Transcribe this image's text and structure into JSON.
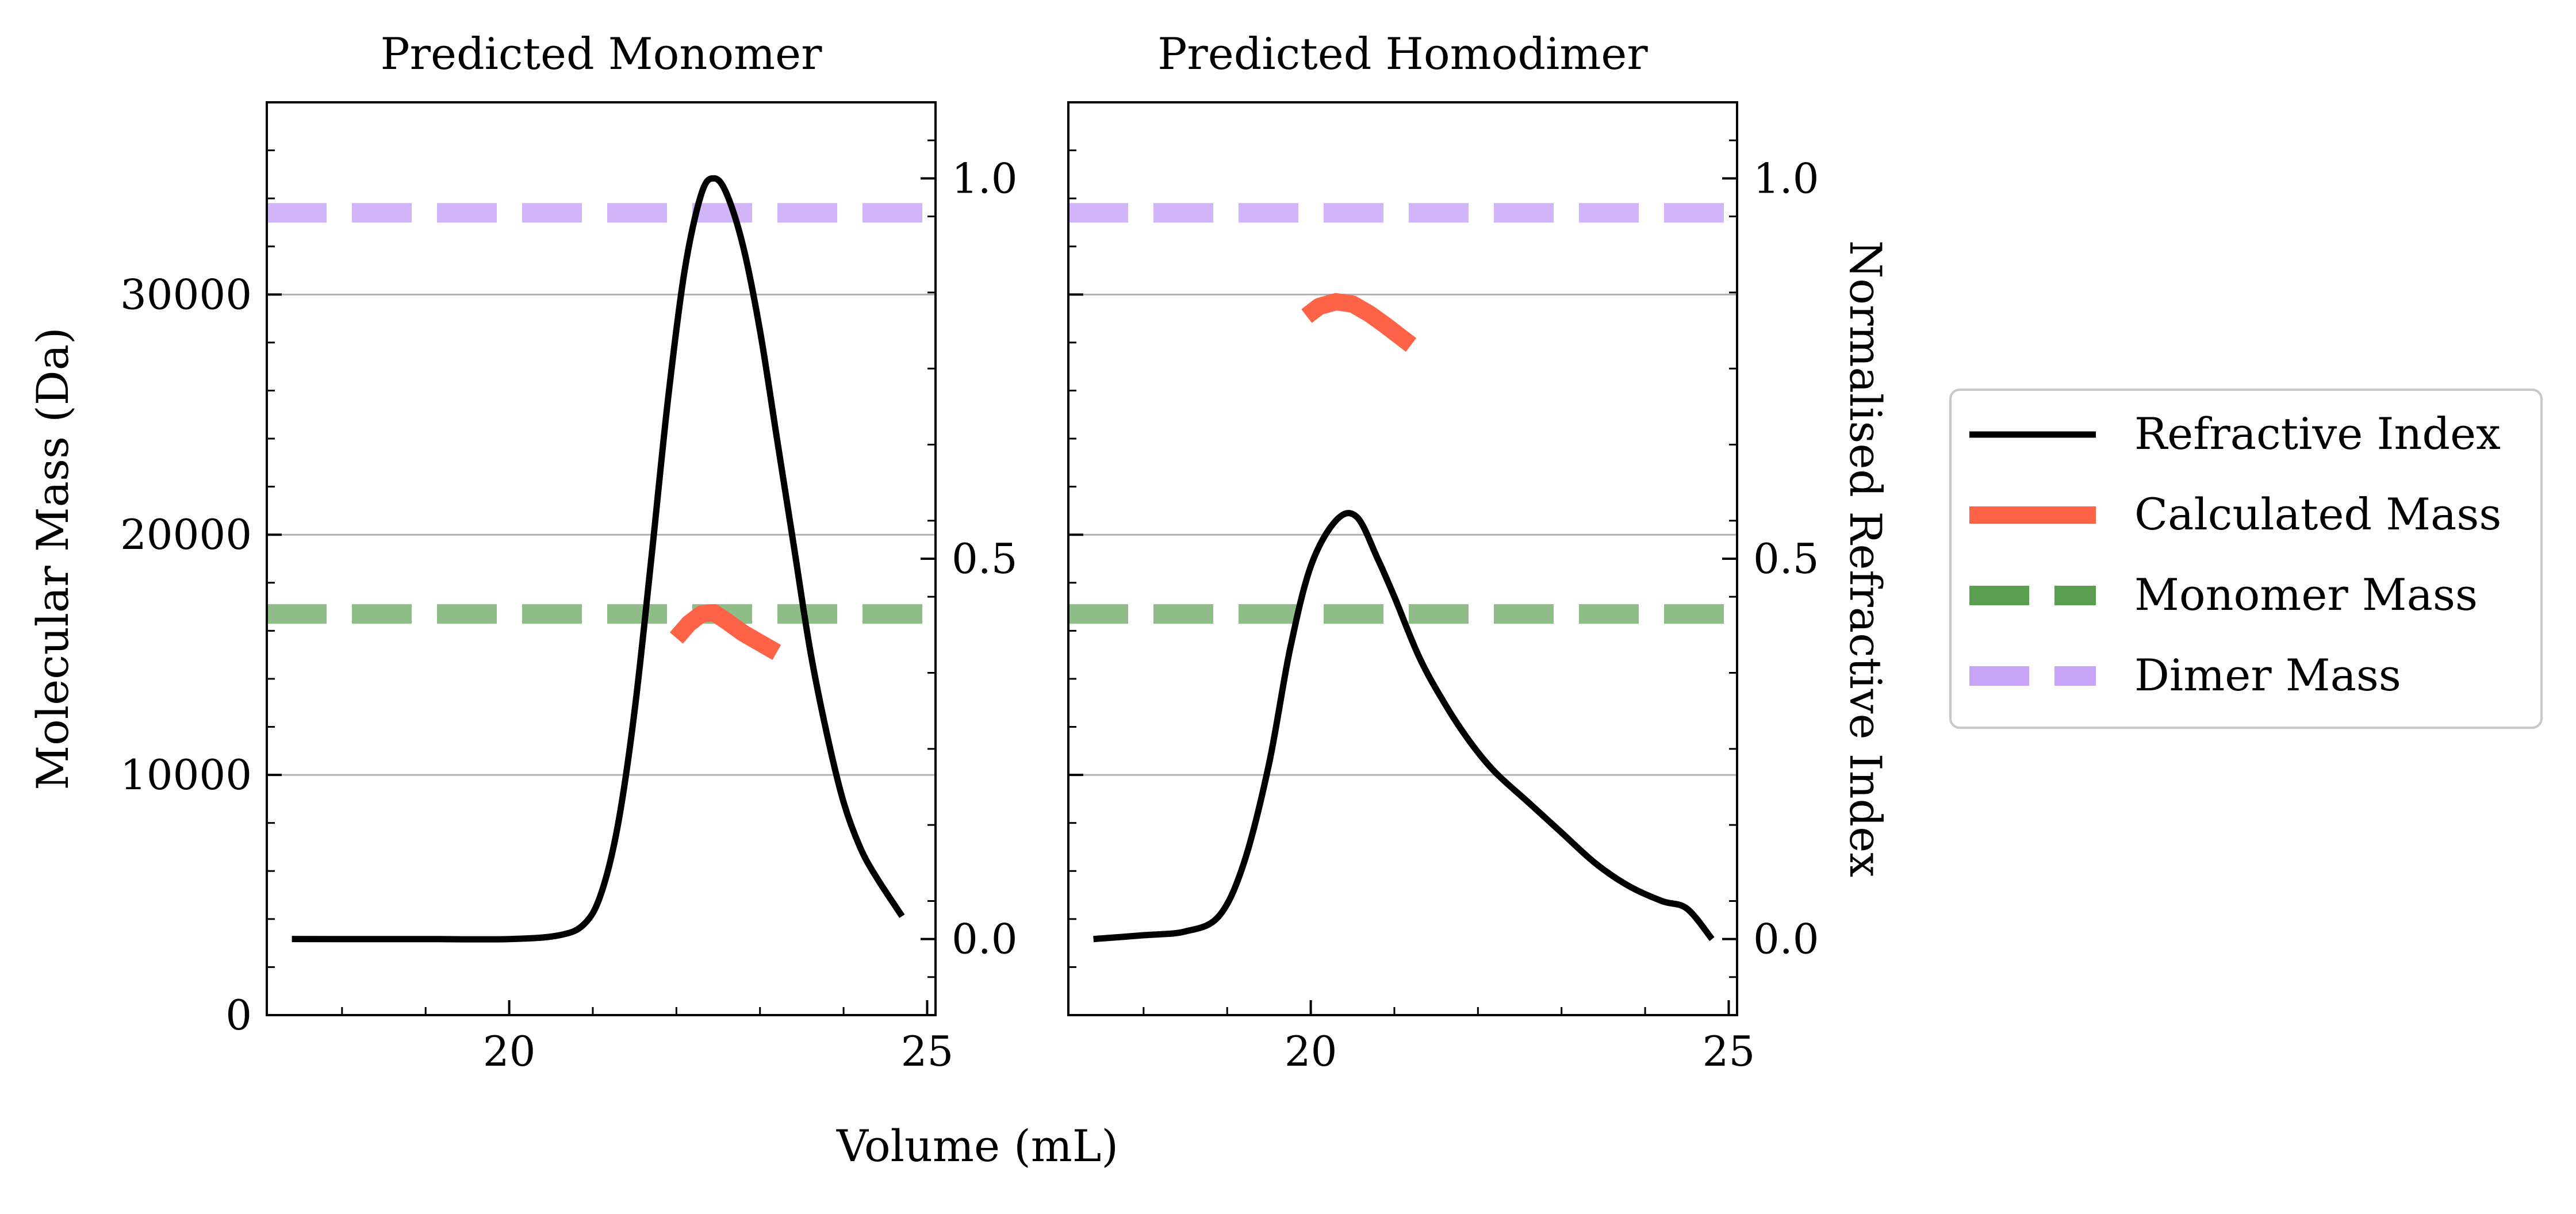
{
  "chart_data": {
    "type": "line",
    "shared": {
      "xlabel": "Volume (mL)",
      "ylabel_left": "Molecular Mass (Da)",
      "ylabel_right": "Normalised Refractive Index",
      "xlim": [
        17.1,
        25.1
      ],
      "ylim_left": [
        0,
        38000
      ],
      "ylim_right": [
        -0.1,
        1.1
      ],
      "xticks": [
        20,
        25
      ],
      "xtick_labels": [
        "20",
        "25"
      ],
      "yticks_left": [
        0,
        10000,
        20000,
        30000
      ],
      "ytick_labels_left": [
        "0",
        "10000",
        "20000",
        "30000"
      ],
      "yticks_right": [
        0.0,
        0.5,
        1.0
      ],
      "ytick_labels_right": [
        "0.0",
        "0.5",
        "1.0"
      ],
      "grid": "horizontal",
      "legend_placement": "outside-right"
    },
    "legend": [
      {
        "label": "Refractive Index",
        "color": "#000000",
        "style": "solid"
      },
      {
        "label": "Calculated Mass",
        "color": "#ff6347",
        "style": "solid-thick"
      },
      {
        "label": "Monomer Mass",
        "color": "#5a9e4f",
        "style": "dashed"
      },
      {
        "label": "Dimer Mass",
        "color": "#c6a3f7",
        "style": "dashed"
      }
    ],
    "subplots": [
      {
        "title": "Predicted Monomer",
        "monomer_mass": 16700,
        "dimer_mass": 33400,
        "refractive_index": {
          "x": [
            17.4,
            18.0,
            19.0,
            20.0,
            20.6,
            20.9,
            21.1,
            21.3,
            21.5,
            21.7,
            21.9,
            22.1,
            22.3,
            22.45,
            22.6,
            22.8,
            23.0,
            23.2,
            23.4,
            23.6,
            23.8,
            24.0,
            24.2,
            24.4,
            24.7
          ],
          "y": [
            0.0,
            0.0,
            0.0,
            0.0,
            0.005,
            0.02,
            0.06,
            0.15,
            0.3,
            0.5,
            0.71,
            0.88,
            0.98,
            1.0,
            0.98,
            0.91,
            0.8,
            0.66,
            0.52,
            0.38,
            0.27,
            0.18,
            0.12,
            0.08,
            0.03
          ]
        },
        "calculated_mass": {
          "x": [
            22.0,
            22.15,
            22.3,
            22.45,
            22.6,
            22.8,
            23.0,
            23.2
          ],
          "y": [
            15700,
            16300,
            16700,
            16750,
            16400,
            15900,
            15500,
            15100
          ]
        }
      },
      {
        "title": "Predicted Homodimer",
        "monomer_mass": 16700,
        "dimer_mass": 33400,
        "refractive_index": {
          "x": [
            17.4,
            18.0,
            18.5,
            18.9,
            19.2,
            19.5,
            19.75,
            20.0,
            20.3,
            20.55,
            20.8,
            21.0,
            21.3,
            21.6,
            21.9,
            22.2,
            22.6,
            23.0,
            23.4,
            23.8,
            24.2,
            24.5,
            24.8
          ],
          "y": [
            0.0,
            0.005,
            0.01,
            0.03,
            0.1,
            0.23,
            0.38,
            0.49,
            0.55,
            0.555,
            0.5,
            0.45,
            0.37,
            0.31,
            0.26,
            0.22,
            0.18,
            0.14,
            0.1,
            0.07,
            0.05,
            0.04,
            0.0
          ]
        },
        "calculated_mass": {
          "x": [
            19.95,
            20.1,
            20.3,
            20.5,
            20.7,
            20.9,
            21.2
          ],
          "y": [
            29100,
            29500,
            29700,
            29600,
            29200,
            28700,
            27900
          ]
        }
      }
    ]
  }
}
